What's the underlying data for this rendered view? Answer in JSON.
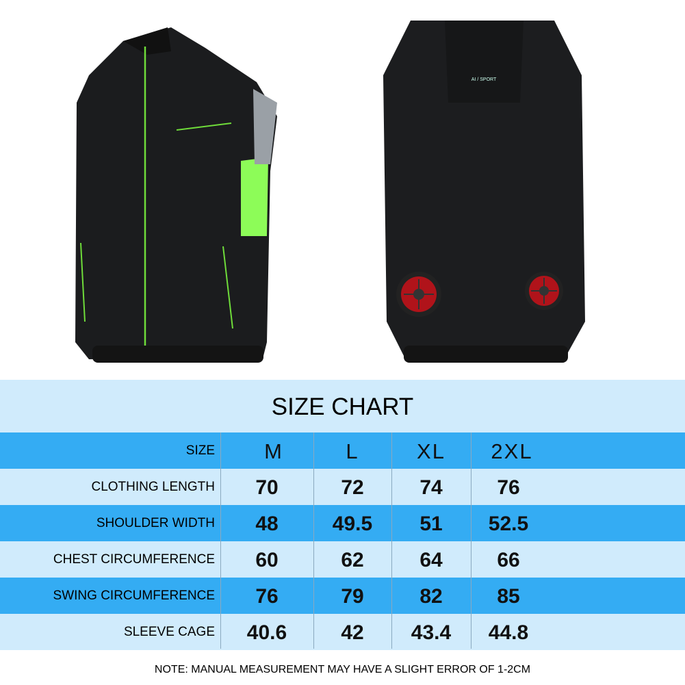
{
  "product": {
    "back_logo_text": "AI / SPORT"
  },
  "size_chart": {
    "title": "SIZE CHART",
    "header_label": "SIZE",
    "sizes": [
      "M",
      "L",
      "XL",
      "2XL"
    ],
    "rows": [
      {
        "label": "CLOTHING LENGTH",
        "values": [
          "70",
          "72",
          "74",
          "76"
        ]
      },
      {
        "label": "SHOULDER WIDTH",
        "values": [
          "48",
          "49.5",
          "51",
          "52.5"
        ]
      },
      {
        "label": "CHEST CIRCUMFERENCE",
        "values": [
          "60",
          "62",
          "64",
          "66"
        ]
      },
      {
        "label": "SWING CIRCUMFERENCE",
        "values": [
          "76",
          "79",
          "82",
          "85"
        ]
      },
      {
        "label": "SLEEVE CAGE",
        "values": [
          "40.6",
          "42",
          "43.4",
          "44.8"
        ]
      }
    ],
    "note": "NOTE: MANUAL MEASUREMENT MAY HAVE A SLIGHT ERROR OF 1-2CM"
  },
  "colors": {
    "header_blue": "#34acf3",
    "light_blue": "#d0ebfc",
    "accent_green": "#7dfc4a",
    "fan_red": "#c0141b"
  }
}
